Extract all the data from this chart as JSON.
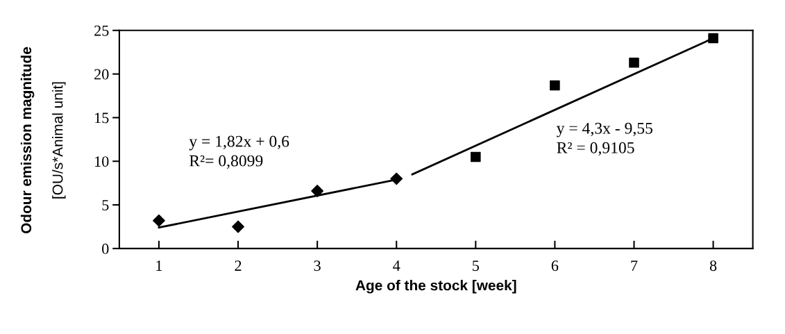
{
  "chart_data": {
    "type": "scatter",
    "xlabel": "Age of the stock [week]",
    "ylabel": "Odour emission magnitude\n[OU/s*Animal unit]",
    "xlim": [
      0.5,
      8.5
    ],
    "xticks": [
      1,
      2,
      3,
      4,
      5,
      6,
      7,
      8
    ],
    "ylim": [
      0,
      25
    ],
    "yticks": [
      0,
      5,
      10,
      15,
      20,
      25
    ],
    "grid": false,
    "legend": false,
    "series": [
      {
        "marker": "diamond",
        "color": "#000000",
        "x": [
          1,
          2,
          3,
          4
        ],
        "values": [
          3.2,
          2.5,
          6.6,
          8.0
        ]
      },
      {
        "marker": "square",
        "color": "#000000",
        "x": [
          5,
          6,
          7,
          8
        ],
        "values": [
          10.5,
          18.7,
          21.3,
          24.1
        ]
      },
      {
        "type": "line",
        "marker": "none",
        "color": "#000000",
        "x": [
          1,
          4
        ],
        "values": [
          2.4,
          7.9
        ]
      },
      {
        "type": "line",
        "marker": "none",
        "color": "#000000",
        "x": [
          4.2,
          8
        ],
        "values": [
          8.5,
          24.1
        ]
      }
    ],
    "annotations": [
      "y = 1,82x + 0,6\nR²= 0,8099",
      "y = 4,3x - 9,55\nR² = 0,9105"
    ]
  }
}
